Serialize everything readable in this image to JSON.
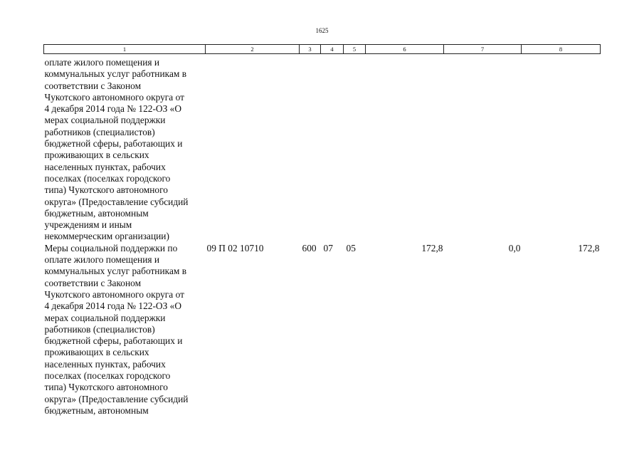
{
  "page_number": "1625",
  "table": {
    "header": [
      "1",
      "2",
      "3",
      "4",
      "5",
      "6",
      "7",
      "8"
    ],
    "rows": [
      {
        "description": [
          "оплате жилого помещения и",
          "коммунальных услуг работникам в",
          "соответствии с Законом",
          "Чукотского автономного округа от",
          "4 декабря 2014 года № 122-ОЗ «О",
          "мерах социальной поддержки",
          "работников (специалистов)",
          "бюджетной сферы, работающих и",
          "проживающих в сельских",
          "населенных пунктах, рабочих",
          "поселках (поселках городского",
          "типа) Чукотского автономного",
          "округа» (Предоставление субсидий",
          "бюджетным, автономным",
          "учреждениям и иным",
          "некоммерческим организации)"
        ],
        "cells": []
      },
      {
        "description": [
          "Меры социальной поддержки по",
          "оплате жилого помещения и",
          "коммунальных услуг работникам в",
          "соответствии с Законом",
          "Чукотского автономного округа от",
          "4 декабря 2014 года № 122-ОЗ «О",
          "мерах социальной поддержки",
          "работников (специалистов)",
          "бюджетной сферы, работающих и",
          "проживающих в сельских",
          "населенных пунктах, рабочих",
          "поселках (поселках городского",
          "типа) Чукотского автономного",
          "округа» (Предоставление субсидий",
          "бюджетным, автономным"
        ],
        "cells": [
          "09 П 02 10710",
          "600",
          "07",
          "05",
          "172,8",
          "0,0",
          "172,8"
        ]
      }
    ]
  }
}
